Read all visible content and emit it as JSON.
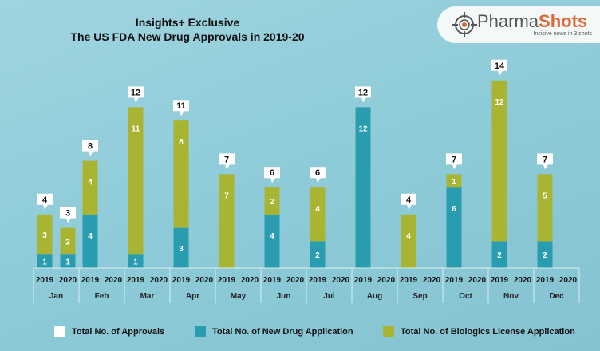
{
  "header": {
    "title_line1": "Insights+ Exclusive",
    "title_line2": "The US FDA New Drug Approvals in 2019-20"
  },
  "logo": {
    "name_a": "Pharma",
    "name_b": "Shots",
    "tagline": "Incisive news in 3 shots",
    "icon": "crosshair-icon"
  },
  "colors": {
    "nda": "#2a9cb0",
    "bla": "#a9b433",
    "total_callout": "#ffffff"
  },
  "chart_data": {
    "type": "bar",
    "stacked": true,
    "title": "The US FDA New Drug Approvals in 2019-20",
    "categories": [
      "Jan",
      "Feb",
      "Mar",
      "Apr",
      "May",
      "Jun",
      "Jul",
      "Aug",
      "Sep",
      "Oct",
      "Nov",
      "Dec"
    ],
    "sub_categories": [
      "2019",
      "2020"
    ],
    "series": [
      {
        "name": "Total No. of New Drug Application",
        "values": [
          [
            1,
            1
          ],
          [
            4,
            0
          ],
          [
            1,
            0
          ],
          [
            3,
            0
          ],
          [
            0,
            0
          ],
          [
            4,
            0
          ],
          [
            2,
            0
          ],
          [
            12,
            0
          ],
          [
            0,
            0
          ],
          [
            6,
            0
          ],
          [
            2,
            0
          ],
          [
            2,
            0
          ]
        ]
      },
      {
        "name": "Total No. of Biologics License Application",
        "values": [
          [
            3,
            2
          ],
          [
            4,
            0
          ],
          [
            11,
            0
          ],
          [
            8,
            0
          ],
          [
            7,
            0
          ],
          [
            2,
            0
          ],
          [
            4,
            0
          ],
          [
            0,
            0
          ],
          [
            4,
            0
          ],
          [
            1,
            0
          ],
          [
            12,
            0
          ],
          [
            5,
            0
          ]
        ]
      }
    ],
    "totals_name": "Total No. of Approvals",
    "totals": [
      [
        4,
        3
      ],
      [
        8,
        0
      ],
      [
        12,
        0
      ],
      [
        11,
        0
      ],
      [
        7,
        0
      ],
      [
        6,
        0
      ],
      [
        6,
        0
      ],
      [
        12,
        0
      ],
      [
        4,
        0
      ],
      [
        7,
        0
      ],
      [
        14,
        0
      ],
      [
        7,
        0
      ]
    ],
    "ylim": [
      0,
      14
    ],
    "grid": false,
    "legend": "bottom"
  }
}
